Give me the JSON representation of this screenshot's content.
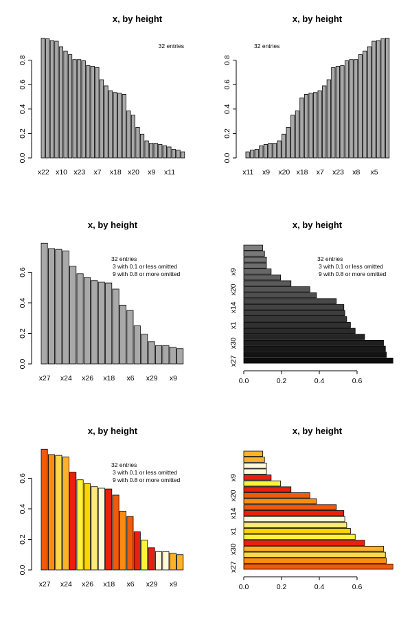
{
  "chart_data": [
    {
      "type": "bar",
      "orientation": "vertical",
      "order": "descending",
      "title": "x, by height",
      "note_lines": [
        "32 entries"
      ],
      "note_anchor": "right",
      "ylim": [
        0,
        1.0
      ],
      "y_ticks": [
        "0.0",
        "0.2",
        "0.4",
        "0.6",
        "0.8"
      ],
      "tick_labels": [
        "x22",
        "x10",
        "x23",
        "x7",
        "x18",
        "x20",
        "x9",
        "x11"
      ],
      "colors": [
        "#a9a9a9"
      ],
      "values": [
        0.98,
        0.975,
        0.96,
        0.955,
        0.91,
        0.875,
        0.845,
        0.805,
        0.805,
        0.795,
        0.755,
        0.75,
        0.74,
        0.64,
        0.59,
        0.55,
        0.535,
        0.53,
        0.52,
        0.385,
        0.35,
        0.25,
        0.195,
        0.14,
        0.12,
        0.12,
        0.11,
        0.1,
        0.09,
        0.07,
        0.065,
        0.05
      ]
    },
    {
      "type": "bar",
      "orientation": "vertical",
      "order": "ascending",
      "title": "x, by height",
      "note_lines": [
        "32 entries"
      ],
      "note_anchor": "left",
      "ylim": [
        0,
        1.0
      ],
      "y_ticks": [
        "0.0",
        "0.2",
        "0.4",
        "0.6",
        "0.8"
      ],
      "tick_labels": [
        "x11",
        "x9",
        "x20",
        "x18",
        "x7",
        "x23",
        "x8",
        "x5"
      ],
      "colors": [
        "#a9a9a9"
      ],
      "values": [
        0.05,
        0.065,
        0.07,
        0.1,
        0.11,
        0.12,
        0.12,
        0.14,
        0.195,
        0.25,
        0.35,
        0.385,
        0.49,
        0.52,
        0.53,
        0.535,
        0.55,
        0.59,
        0.64,
        0.74,
        0.75,
        0.755,
        0.795,
        0.805,
        0.805,
        0.845,
        0.875,
        0.91,
        0.955,
        0.96,
        0.975,
        0.98
      ]
    },
    {
      "type": "bar",
      "orientation": "vertical",
      "order": "descending",
      "title": "x, by height",
      "note_lines": [
        "32 entries",
        "3  with 0.1 or less omitted",
        "9  with 0.8 or more omitted"
      ],
      "note_anchor": "right",
      "ylim": [
        0,
        0.8
      ],
      "y_ticks": [
        "0.0",
        "0.2",
        "0.4",
        "0.6"
      ],
      "tick_labels": [
        "x27",
        "x24",
        "x26",
        "x18",
        "x6",
        "x29",
        "x9"
      ],
      "colors": [
        "#a9a9a9"
      ],
      "values": [
        0.79,
        0.755,
        0.75,
        0.74,
        0.64,
        0.59,
        0.565,
        0.545,
        0.535,
        0.53,
        0.49,
        0.385,
        0.35,
        0.25,
        0.195,
        0.145,
        0.12,
        0.12,
        0.11,
        0.1
      ]
    },
    {
      "type": "bar",
      "orientation": "horizontal",
      "order": "ascending",
      "title": "x, by height",
      "note_lines": [
        "32 entries",
        "3  with 0.1 or less omitted",
        "9  with 0.8 or more omitted"
      ],
      "note_anchor": "right",
      "xlim": [
        0,
        0.8
      ],
      "x_ticks": [
        "0.0",
        "0.2",
        "0.4",
        "0.6"
      ],
      "tick_labels": [
        "x27",
        "x30",
        "x1",
        "x14",
        "x20",
        "x9"
      ],
      "colors": [
        "#0d0d0d",
        "#131313",
        "#191919",
        "#1f1f1f",
        "#252525",
        "#2b2b2b",
        "#313131",
        "#373737",
        "#3d3d3d",
        "#434343",
        "#494949",
        "#4f4f4f",
        "#555555",
        "#5b5b5b",
        "#616161",
        "#676767",
        "#6d6d6d",
        "#737373",
        "#797979",
        "#7f7f7f"
      ],
      "values": [
        0.79,
        0.755,
        0.75,
        0.74,
        0.64,
        0.59,
        0.565,
        0.545,
        0.535,
        0.53,
        0.49,
        0.385,
        0.35,
        0.25,
        0.195,
        0.145,
        0.12,
        0.12,
        0.11,
        0.1
      ]
    },
    {
      "type": "bar",
      "orientation": "vertical",
      "order": "descending",
      "title": "x, by height",
      "note_lines": [
        "32 entries",
        "3  with 0.1 or less omitted",
        "9  with 0.8 or more omitted"
      ],
      "note_anchor": "right",
      "ylim": [
        0,
        0.8
      ],
      "y_ticks": [
        "0.0",
        "0.2",
        "0.4",
        "0.6"
      ],
      "tick_labels": [
        "x27",
        "x24",
        "x26",
        "x18",
        "x6",
        "x29",
        "x9"
      ],
      "colors": [
        "#f05a0a",
        "#f98d12",
        "#fcd94a",
        "#fdb22a",
        "#e8200e",
        "#fff23a",
        "#ffd400",
        "#ffe97a",
        "#fffbd8",
        "#e8200e",
        "#f05a0a",
        "#f98d12",
        "#f05a0a",
        "#e8200e",
        "#fff23a",
        "#e8200e",
        "#fffbd8",
        "#fffbd8",
        "#fdb22a",
        "#fdb22a"
      ],
      "values": [
        0.79,
        0.755,
        0.75,
        0.74,
        0.64,
        0.59,
        0.565,
        0.545,
        0.535,
        0.53,
        0.49,
        0.385,
        0.35,
        0.25,
        0.195,
        0.145,
        0.12,
        0.12,
        0.11,
        0.1
      ]
    },
    {
      "type": "bar",
      "orientation": "horizontal",
      "order": "ascending",
      "title": "x, by height",
      "note_lines": [],
      "note_anchor": "right",
      "xlim": [
        0,
        0.8
      ],
      "x_ticks": [
        "0.0",
        "0.2",
        "0.4",
        "0.6"
      ],
      "tick_labels": [
        "x27",
        "x30",
        "x1",
        "x14",
        "x20",
        "x9"
      ],
      "colors": [
        "#f05a0a",
        "#f98d12",
        "#fcd94a",
        "#fdb22a",
        "#e8200e",
        "#fff23a",
        "#ffd400",
        "#ffe97a",
        "#fffbd8",
        "#e8200e",
        "#f05a0a",
        "#f98d12",
        "#f05a0a",
        "#e8200e",
        "#fff23a",
        "#e8200e",
        "#fffbd8",
        "#fffbd8",
        "#fdb22a",
        "#fdb22a"
      ],
      "values": [
        0.79,
        0.755,
        0.75,
        0.74,
        0.64,
        0.59,
        0.565,
        0.545,
        0.535,
        0.53,
        0.49,
        0.385,
        0.35,
        0.25,
        0.195,
        0.145,
        0.12,
        0.12,
        0.11,
        0.1
      ]
    }
  ]
}
